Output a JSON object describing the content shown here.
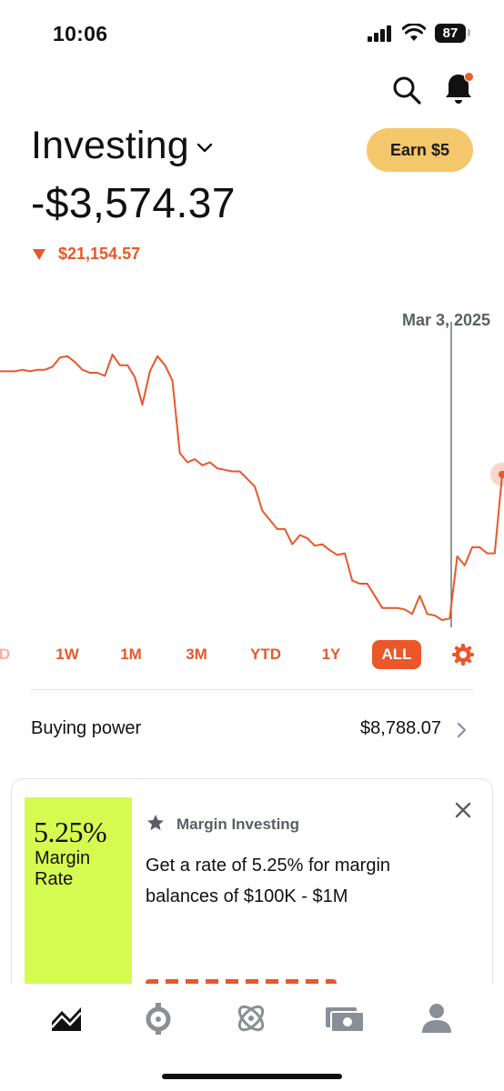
{
  "status_bar": {
    "time": "10:06",
    "battery": "87"
  },
  "header": {
    "title": "Investing",
    "earn_button": "Earn $5",
    "balance": "-$3,574.37",
    "change": "$21,154.57",
    "change_direction": "down",
    "accent_color": "#e9572a"
  },
  "chart_data": {
    "type": "line",
    "title": "",
    "xlabel": "",
    "ylabel": "",
    "selected_date": "Mar 3, 2025",
    "grid": false,
    "legend": "none",
    "series": [
      {
        "values": [
          82,
          82,
          82,
          82.5,
          82,
          82.5,
          82.5,
          83.5,
          86.5,
          87,
          85,
          82.5,
          81.5,
          81.5,
          80.5,
          87.5,
          84,
          84,
          80,
          71,
          82,
          87,
          84,
          79,
          55,
          52,
          53,
          51,
          52,
          50,
          49.5,
          49,
          49,
          46.5,
          44,
          36,
          33,
          30,
          30,
          25,
          28,
          27,
          24.5,
          25,
          23,
          21.5,
          22,
          13,
          12,
          12,
          8,
          4,
          4,
          4,
          3.5,
          2,
          8,
          2,
          1.5,
          0,
          0.5,
          21,
          18,
          24,
          24,
          22,
          22,
          48
        ]
      }
    ]
  },
  "range_selector": {
    "items": [
      "D",
      "1W",
      "1M",
      "3M",
      "YTD",
      "1Y",
      "ALL"
    ],
    "selected": "ALL"
  },
  "buying_power": {
    "label": "Buying power",
    "value": "$8,788.07"
  },
  "promo": {
    "rate": "5.25%",
    "rate_label_line1": "Margin",
    "rate_label_line2": "Rate",
    "tag": "Margin Investing",
    "text": "Get a rate of 5.25% for margin balances of $100K - $1M",
    "tile_color": "#d6fb50"
  },
  "tab_bar": {
    "items": [
      "chart-icon",
      "crypto-icon",
      "atom-icon",
      "cash-icon",
      "account-icon"
    ],
    "selected": "chart-icon"
  }
}
